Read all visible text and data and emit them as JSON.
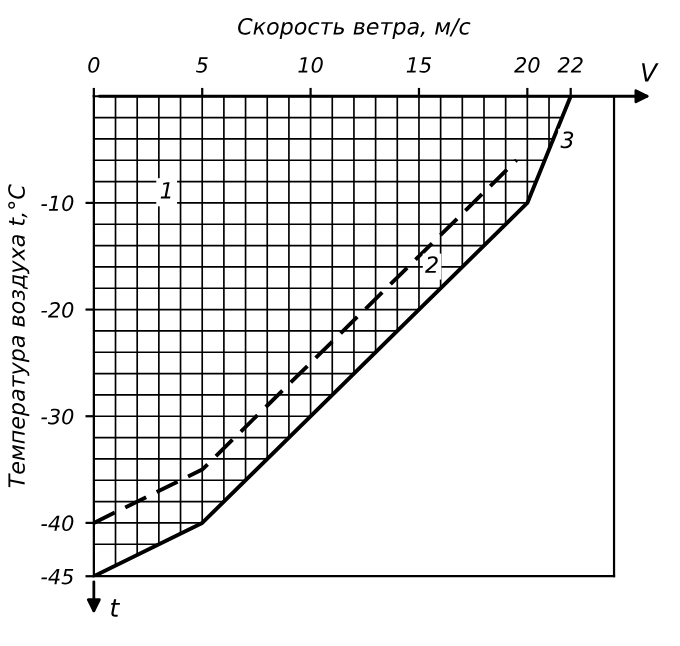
{
  "chart_data": {
    "type": "line",
    "xlabel": "Скорость ветра, м/с",
    "ylabel": "Температура воздуха t,°C",
    "series": [
      {
        "name": "2",
        "color": "#000000",
        "line_style": "dashed",
        "x": [
          0,
          5,
          19.5
        ],
        "values": [
          -40,
          -35,
          -6
        ]
      },
      {
        "name": "3",
        "color": "#000000",
        "line_style": "solid",
        "x": [
          0,
          5,
          20,
          22
        ],
        "values": [
          -45,
          -40,
          -10,
          0
        ]
      }
    ],
    "xlim": [
      0,
      24
    ],
    "ylim": [
      -45,
      0
    ],
    "xticks": [
      0,
      {
        "value": 1,
        "label": null
      },
      {
        "value": 2,
        "label": null
      },
      {
        "value": 3,
        "label": null
      },
      {
        "value": 4,
        "label": null
      },
      5,
      {
        "value": 6,
        "label": null
      },
      {
        "value": 7,
        "label": null
      },
      {
        "value": 8,
        "label": null
      },
      {
        "value": 9,
        "label": null
      },
      10,
      {
        "value": 11,
        "label": null
      },
      {
        "value": 12,
        "label": null
      },
      {
        "value": 13,
        "label": null
      },
      {
        "value": 14,
        "label": null
      },
      15,
      {
        "value": 16,
        "label": null
      },
      {
        "value": 17,
        "label": null
      },
      {
        "value": 18,
        "label": null
      },
      {
        "value": 19,
        "label": null
      },
      20,
      {
        "value": 21,
        "label": null
      },
      22
    ],
    "yticks": [
      {
        "value": -2,
        "label": null
      },
      {
        "value": -4,
        "label": null
      },
      {
        "value": -6,
        "label": null
      },
      {
        "value": -8,
        "label": null
      },
      -10,
      {
        "value": -12,
        "label": null
      },
      {
        "value": -14,
        "label": null
      },
      {
        "value": -16,
        "label": null
      },
      {
        "value": -18,
        "label": null
      },
      -20,
      {
        "value": -22,
        "label": null
      },
      {
        "value": -24,
        "label": null
      },
      {
        "value": -26,
        "label": null
      },
      {
        "value": -28,
        "label": null
      },
      -30,
      {
        "value": -32,
        "label": null
      },
      {
        "value": -34,
        "label": null
      },
      {
        "value": -36,
        "label": null
      },
      {
        "value": -38,
        "label": null
      },
      -40,
      {
        "value": -42,
        "label": null
      },
      -45
    ],
    "grid": true,
    "legend": false,
    "annotations": [
      "1",
      "V",
      "t"
    ]
  }
}
